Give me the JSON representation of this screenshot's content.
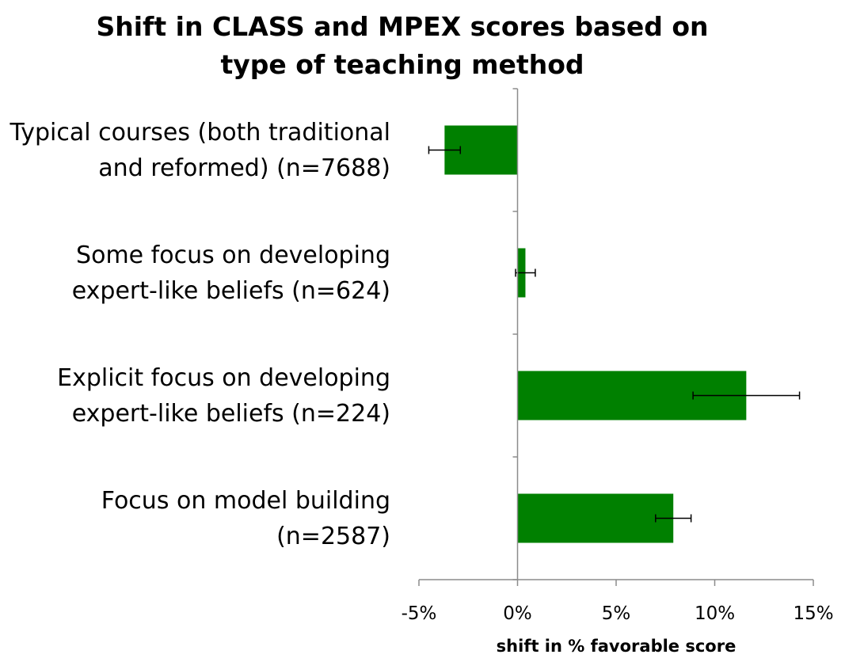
{
  "chart_data": {
    "type": "bar",
    "orientation": "horizontal",
    "title_lines": [
      "Shift in CLASS and MPEX scores based on",
      "type of teaching method"
    ],
    "xlabel": "shift in % favorable score",
    "ylabel": "",
    "xlim": [
      -5,
      15
    ],
    "x_ticks": [
      -5,
      0,
      5,
      10,
      15
    ],
    "x_tick_labels": [
      "-5%",
      "0%",
      "5%",
      "10%",
      "15%"
    ],
    "grid": false,
    "legend": "none",
    "bar_color": "#008000",
    "categories": [
      {
        "lines": [
          "Typical courses (both traditional",
          "and reformed) (n=7688)"
        ]
      },
      {
        "lines": [
          "Some focus on developing",
          "expert-like beliefs (n=624)"
        ]
      },
      {
        "lines": [
          "Explicit focus on developing",
          "expert-like beliefs (n=224)"
        ]
      },
      {
        "lines": [
          "Focus on model building",
          "(n=2587)"
        ]
      }
    ],
    "values": [
      -3.7,
      0.4,
      11.6,
      7.9
    ],
    "error_low": [
      -4.5,
      -0.1,
      8.9,
      7.0
    ],
    "error_high": [
      -2.9,
      0.9,
      14.3,
      8.8
    ]
  }
}
